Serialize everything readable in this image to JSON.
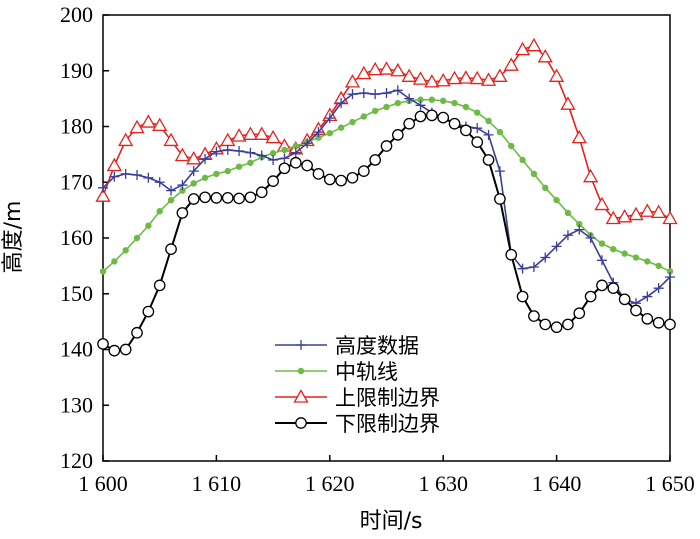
{
  "chart_data": {
    "type": "line",
    "xlabel": "时间/s",
    "ylabel": "高度/m",
    "xlim": [
      1600,
      1650
    ],
    "ylim": [
      120,
      200
    ],
    "xticks": [
      1600,
      1610,
      1620,
      1630,
      1640,
      1650
    ],
    "xtick_labels": [
      "1 600",
      "1 610",
      "1 620",
      "1 630",
      "1 640",
      "1 650"
    ],
    "yticks": [
      120,
      130,
      140,
      150,
      160,
      170,
      180,
      190,
      200
    ],
    "ytick_labels": [
      "120",
      "130",
      "140",
      "150",
      "160",
      "170",
      "180",
      "190",
      "200"
    ],
    "grid": false,
    "legend_position": "lower-center",
    "series": [
      {
        "name": "高度数据",
        "color": "#3b3f9a",
        "marker": "plus",
        "x": [
          1600,
          1601,
          1602,
          1603,
          1604,
          1605,
          1606,
          1607,
          1608,
          1609,
          1610,
          1611,
          1612,
          1613,
          1614,
          1615,
          1616,
          1617,
          1618,
          1619,
          1620,
          1621,
          1622,
          1623,
          1624,
          1625,
          1626,
          1627,
          1628,
          1629,
          1630,
          1631,
          1632,
          1633,
          1634,
          1635,
          1636,
          1637,
          1638,
          1639,
          1640,
          1641,
          1642,
          1643,
          1644,
          1645,
          1646,
          1647,
          1648,
          1649,
          1650
        ],
        "values": [
          169,
          171,
          171.5,
          171.3,
          170.8,
          170,
          168.5,
          169.5,
          172,
          174.2,
          175.5,
          175.8,
          175.6,
          175.3,
          174.8,
          174,
          174.3,
          175.3,
          177,
          179,
          181.5,
          184.2,
          185.8,
          186,
          185.8,
          186,
          186.5,
          185,
          183.8,
          182.5,
          181.5,
          180.5,
          180,
          179.7,
          178.5,
          172,
          157,
          154.5,
          154.8,
          156.5,
          158.5,
          160.5,
          161.5,
          160,
          156,
          152,
          149,
          148.3,
          149.5,
          151,
          153
        ]
      },
      {
        "name": "中轨线",
        "color": "#6dbb45",
        "marker": "dot",
        "x": [
          1600,
          1601,
          1602,
          1603,
          1604,
          1605,
          1606,
          1607,
          1608,
          1609,
          1610,
          1611,
          1612,
          1613,
          1614,
          1615,
          1616,
          1617,
          1618,
          1619,
          1620,
          1621,
          1622,
          1623,
          1624,
          1625,
          1626,
          1627,
          1628,
          1629,
          1630,
          1631,
          1632,
          1633,
          1634,
          1635,
          1636,
          1637,
          1638,
          1639,
          1640,
          1641,
          1642,
          1643,
          1644,
          1645,
          1646,
          1647,
          1648,
          1649,
          1650
        ],
        "values": [
          154,
          155.8,
          157.8,
          160,
          162.2,
          164.8,
          166.8,
          168.5,
          169.8,
          170.8,
          171.5,
          172,
          172.8,
          173.5,
          174.5,
          175.2,
          175.8,
          176.5,
          177.2,
          178,
          178.8,
          179.8,
          180.8,
          181.8,
          182.8,
          183.5,
          184.2,
          184.6,
          184.8,
          184.8,
          184.6,
          184.2,
          183.5,
          182.5,
          181,
          179,
          176.5,
          174,
          171.5,
          169,
          166.8,
          164.5,
          162.5,
          160.5,
          159,
          158,
          157.2,
          156.5,
          155.8,
          155,
          154
        ]
      },
      {
        "name": "上限制边界",
        "color": "#e8211d",
        "marker": "triangle",
        "x": [
          1600,
          1601,
          1602,
          1603,
          1604,
          1605,
          1606,
          1607,
          1608,
          1609,
          1610,
          1611,
          1612,
          1613,
          1614,
          1615,
          1616,
          1617,
          1618,
          1619,
          1620,
          1621,
          1622,
          1623,
          1624,
          1625,
          1626,
          1627,
          1628,
          1629,
          1630,
          1631,
          1632,
          1633,
          1634,
          1635,
          1636,
          1637,
          1638,
          1639,
          1640,
          1641,
          1642,
          1643,
          1644,
          1645,
          1646,
          1647,
          1648,
          1649,
          1650
        ],
        "values": [
          167.5,
          173,
          177.5,
          179.8,
          180.8,
          180.2,
          177.5,
          174.8,
          174.2,
          175,
          176,
          177.5,
          178.3,
          178.6,
          178.6,
          178,
          176.5,
          176,
          177.5,
          179.5,
          182,
          185,
          188,
          189.5,
          190.2,
          190.3,
          190,
          189,
          188.5,
          188,
          188.2,
          188.6,
          188.7,
          188.6,
          188.3,
          189,
          191,
          193.8,
          194.5,
          192.5,
          189,
          184,
          178,
          171,
          166,
          163.5,
          163.8,
          164.2,
          164.8,
          164.6,
          163.5
        ]
      },
      {
        "name": "下限制边界",
        "color": "#000000",
        "marker": "circle",
        "x": [
          1600,
          1601,
          1602,
          1603,
          1604,
          1605,
          1606,
          1607,
          1608,
          1609,
          1610,
          1611,
          1612,
          1613,
          1614,
          1615,
          1616,
          1617,
          1618,
          1619,
          1620,
          1621,
          1622,
          1623,
          1624,
          1625,
          1626,
          1627,
          1628,
          1629,
          1630,
          1631,
          1632,
          1633,
          1634,
          1635,
          1636,
          1637,
          1638,
          1639,
          1640,
          1641,
          1642,
          1643,
          1644,
          1645,
          1646,
          1647,
          1648,
          1649,
          1650
        ],
        "values": [
          141,
          139.8,
          140,
          143,
          146.8,
          151.5,
          158,
          164.5,
          167,
          167.3,
          167.2,
          167.2,
          167.1,
          167.3,
          168.2,
          170.2,
          172.5,
          173.5,
          173,
          171.5,
          170.5,
          170.3,
          170.8,
          172,
          174,
          176.5,
          178.5,
          180.5,
          181.8,
          182,
          181.6,
          180.5,
          179.3,
          177.2,
          174,
          167,
          157,
          149.5,
          146,
          144.5,
          144,
          144.5,
          146.5,
          149.5,
          151.5,
          151,
          149,
          147,
          145.5,
          144.8,
          144.5
        ]
      }
    ]
  }
}
